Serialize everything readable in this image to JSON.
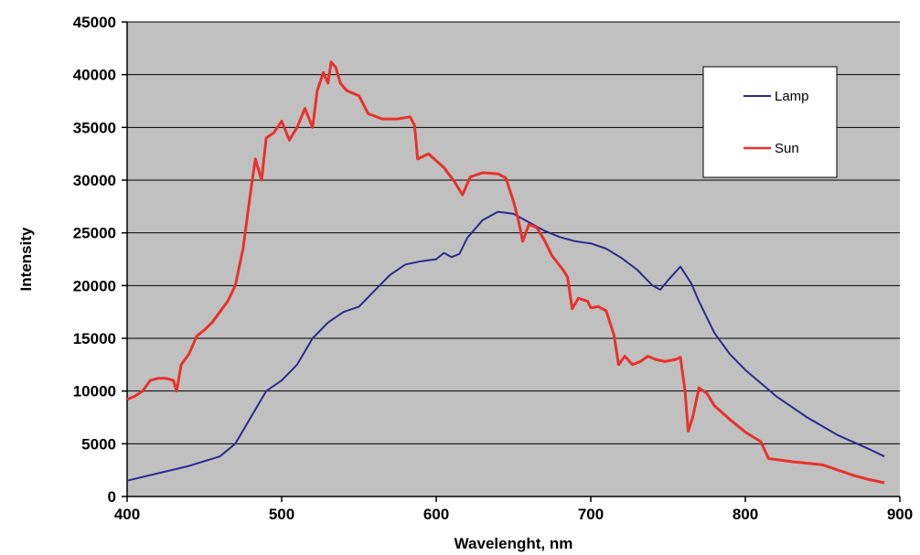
{
  "chart_data": {
    "type": "line",
    "title": "",
    "xlabel": "Wavelenght, nm",
    "ylabel": "Intensity",
    "xlim": [
      400,
      900
    ],
    "ylim": [
      0,
      45000
    ],
    "xticks": [
      400,
      500,
      600,
      700,
      800,
      900
    ],
    "yticks": [
      0,
      5000,
      10000,
      15000,
      20000,
      25000,
      30000,
      35000,
      40000,
      45000
    ],
    "grid": "horizontal",
    "background_color": "#c0c0c0",
    "legend_position": "top-right",
    "series": [
      {
        "name": "Lamp",
        "color": "#2b2b8f",
        "points": [
          [
            400,
            1500
          ],
          [
            420,
            2200
          ],
          [
            440,
            2900
          ],
          [
            460,
            3800
          ],
          [
            470,
            5000
          ],
          [
            480,
            7500
          ],
          [
            490,
            10000
          ],
          [
            500,
            11000
          ],
          [
            510,
            12500
          ],
          [
            520,
            15000
          ],
          [
            530,
            16500
          ],
          [
            540,
            17500
          ],
          [
            550,
            18000
          ],
          [
            560,
            19500
          ],
          [
            570,
            21000
          ],
          [
            580,
            22000
          ],
          [
            590,
            22300
          ],
          [
            600,
            22500
          ],
          [
            605,
            23100
          ],
          [
            610,
            22700
          ],
          [
            615,
            23000
          ],
          [
            620,
            24500
          ],
          [
            630,
            26200
          ],
          [
            640,
            27000
          ],
          [
            650,
            26800
          ],
          [
            660,
            26000
          ],
          [
            670,
            25200
          ],
          [
            680,
            24600
          ],
          [
            690,
            24200
          ],
          [
            700,
            24000
          ],
          [
            710,
            23500
          ],
          [
            720,
            22600
          ],
          [
            730,
            21500
          ],
          [
            740,
            20000
          ],
          [
            745,
            19600
          ],
          [
            750,
            20500
          ],
          [
            758,
            21800
          ],
          [
            765,
            20200
          ],
          [
            770,
            18500
          ],
          [
            780,
            15500
          ],
          [
            790,
            13500
          ],
          [
            800,
            12000
          ],
          [
            820,
            9500
          ],
          [
            840,
            7500
          ],
          [
            860,
            5800
          ],
          [
            880,
            4500
          ],
          [
            890,
            3800
          ]
        ]
      },
      {
        "name": "Sun",
        "color": "#e8322b",
        "points": [
          [
            400,
            9200
          ],
          [
            405,
            9500
          ],
          [
            410,
            10000
          ],
          [
            415,
            11000
          ],
          [
            420,
            11200
          ],
          [
            425,
            11200
          ],
          [
            430,
            11000
          ],
          [
            432,
            10000
          ],
          [
            435,
            12500
          ],
          [
            440,
            13500
          ],
          [
            445,
            15200
          ],
          [
            450,
            15800
          ],
          [
            455,
            16500
          ],
          [
            460,
            17500
          ],
          [
            465,
            18500
          ],
          [
            470,
            20000
          ],
          [
            475,
            23500
          ],
          [
            480,
            29000
          ],
          [
            483,
            32000
          ],
          [
            487,
            30000
          ],
          [
            490,
            34000
          ],
          [
            495,
            34500
          ],
          [
            500,
            35600
          ],
          [
            505,
            33800
          ],
          [
            510,
            35000
          ],
          [
            515,
            36800
          ],
          [
            520,
            35000
          ],
          [
            523,
            38500
          ],
          [
            527,
            40200
          ],
          [
            530,
            39200
          ],
          [
            532,
            41200
          ],
          [
            535,
            40700
          ],
          [
            538,
            39200
          ],
          [
            542,
            38500
          ],
          [
            550,
            38000
          ],
          [
            556,
            36300
          ],
          [
            565,
            35800
          ],
          [
            575,
            35800
          ],
          [
            583,
            36000
          ],
          [
            586,
            35200
          ],
          [
            588,
            32000
          ],
          [
            595,
            32500
          ],
          [
            605,
            31200
          ],
          [
            612,
            29800
          ],
          [
            617,
            28600
          ],
          [
            622,
            30300
          ],
          [
            630,
            30700
          ],
          [
            640,
            30600
          ],
          [
            645,
            30200
          ],
          [
            650,
            28000
          ],
          [
            653,
            26300
          ],
          [
            656,
            24200
          ],
          [
            660,
            25800
          ],
          [
            665,
            25500
          ],
          [
            670,
            24300
          ],
          [
            675,
            22800
          ],
          [
            682,
            21500
          ],
          [
            685,
            20800
          ],
          [
            688,
            17800
          ],
          [
            692,
            18800
          ],
          [
            698,
            18500
          ],
          [
            700,
            17900
          ],
          [
            705,
            18000
          ],
          [
            710,
            17600
          ],
          [
            715,
            15300
          ],
          [
            718,
            12500
          ],
          [
            722,
            13300
          ],
          [
            727,
            12500
          ],
          [
            732,
            12800
          ],
          [
            737,
            13300
          ],
          [
            742,
            13000
          ],
          [
            748,
            12800
          ],
          [
            755,
            13000
          ],
          [
            758,
            13200
          ],
          [
            761,
            10000
          ],
          [
            763,
            6200
          ],
          [
            766,
            7500
          ],
          [
            770,
            10300
          ],
          [
            775,
            9800
          ],
          [
            780,
            8600
          ],
          [
            790,
            7300
          ],
          [
            800,
            6100
          ],
          [
            810,
            5200
          ],
          [
            815,
            3600
          ],
          [
            830,
            3300
          ],
          [
            850,
            3000
          ],
          [
            870,
            2000
          ],
          [
            880,
            1600
          ],
          [
            890,
            1300
          ]
        ]
      }
    ]
  }
}
